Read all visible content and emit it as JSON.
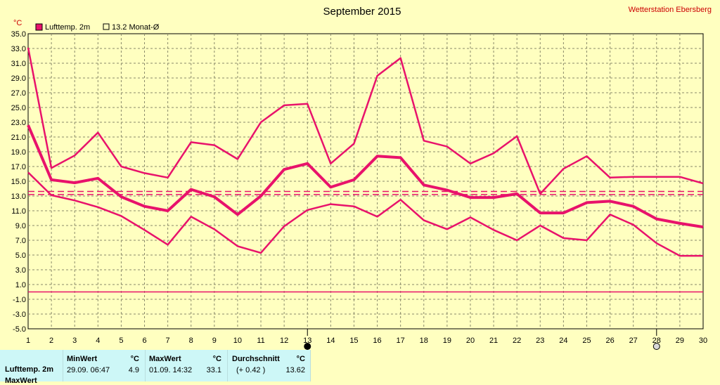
{
  "chart_data": {
    "type": "line",
    "title": "September 2015",
    "station": "Wetterstation Ebersberg",
    "unit_label": "°C",
    "x": [
      1,
      2,
      3,
      4,
      5,
      6,
      7,
      8,
      9,
      10,
      11,
      12,
      13,
      14,
      15,
      16,
      17,
      18,
      19,
      20,
      21,
      22,
      23,
      24,
      25,
      26,
      27,
      28,
      29,
      30
    ],
    "ylim": [
      -5.0,
      35.0
    ],
    "yticks": [
      "35.0",
      "33.0",
      "31.0",
      "29.0",
      "27.0",
      "25.0",
      "23.0",
      "21.0",
      "19.0",
      "17.0",
      "15.0",
      "13.0",
      "11.0",
      "9.0",
      "7.0",
      "5.0",
      "3.0",
      "1.0",
      "-1.0",
      "-3.0",
      "-5.0"
    ],
    "grid": true,
    "legend": [
      {
        "label": "Lufttemp. 2m",
        "swatch": "filled",
        "color": "#e8126b"
      },
      {
        "label": "13.2 Monat-Ø",
        "swatch": "outline",
        "color": "#e8126b"
      }
    ],
    "series": [
      {
        "role": "max",
        "stroke": 2.5,
        "color": "#e8126b",
        "values": [
          33.1,
          16.8,
          18.5,
          21.6,
          17.0,
          16.1,
          15.5,
          20.3,
          19.9,
          18.0,
          23.0,
          25.3,
          25.5,
          17.4,
          20.1,
          29.3,
          31.7,
          20.5,
          19.7,
          17.4,
          18.8,
          21.1,
          13.3,
          16.7,
          18.4,
          15.5,
          15.6,
          15.6,
          15.6,
          14.7
        ]
      },
      {
        "role": "mean",
        "stroke": 4,
        "color": "#e8126b",
        "values": [
          22.6,
          15.2,
          14.8,
          15.4,
          12.9,
          11.6,
          11.0,
          13.9,
          12.9,
          10.5,
          13.0,
          16.6,
          17.4,
          14.2,
          15.2,
          18.4,
          18.2,
          14.5,
          13.8,
          12.8,
          12.8,
          13.3,
          10.7,
          10.7,
          12.1,
          12.3,
          11.6,
          9.9,
          9.3,
          8.8
        ]
      },
      {
        "role": "min",
        "stroke": 2.5,
        "color": "#e8126b",
        "values": [
          16.2,
          13.1,
          12.4,
          11.5,
          10.3,
          8.4,
          6.4,
          10.2,
          8.5,
          6.2,
          5.3,
          8.9,
          11.1,
          11.9,
          11.6,
          10.2,
          12.5,
          9.7,
          8.5,
          10.1,
          8.4,
          7.0,
          9.0,
          7.3,
          7.0,
          10.5,
          9.1,
          6.6,
          4.9,
          4.9
        ]
      }
    ],
    "reference_lines": [
      {
        "value": 13.62,
        "style": "dashed",
        "color": "#e8126b"
      },
      {
        "value": 13.2,
        "style": "dashed",
        "color": "#e8126b"
      },
      {
        "value": 0.0,
        "style": "solid",
        "color": "#e8126b"
      }
    ],
    "x_markers": [
      {
        "x": 13,
        "symbol": "filled-circle"
      },
      {
        "x": 28,
        "symbol": "open-circle"
      }
    ]
  },
  "footer": {
    "row_label": "Lufttemp. 2m",
    "row_label_2": "MaxWert",
    "min": {
      "header": "MinWert",
      "unit": "°C",
      "datetime": "29.09.  06:47",
      "value": "4.9"
    },
    "max": {
      "header": "MaxWert",
      "unit": "°C",
      "datetime": "01.09.  14:32",
      "value": "33.1"
    },
    "avg": {
      "header": "Durchschnitt",
      "unit": "°C",
      "delta": "(+ 0.42 )",
      "value": "13.62"
    }
  }
}
